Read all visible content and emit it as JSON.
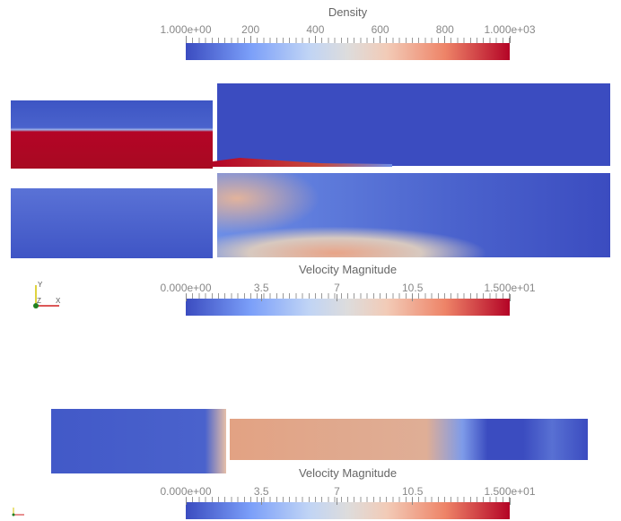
{
  "colorbars": [
    {
      "title": "Density",
      "tick_labels": [
        "1.000e+00",
        "200",
        "400",
        "600",
        "800",
        "1.000e+03"
      ]
    },
    {
      "title": "Velocity Magnitude",
      "tick_labels": [
        "0.000e+00",
        "3.5",
        "7",
        "10.5",
        "1.500e+01"
      ]
    },
    {
      "title": "Velocity Magnitude",
      "tick_labels": [
        "0.000e+00",
        "3.5",
        "7",
        "10.5",
        "1.500e+01"
      ]
    }
  ],
  "axes": {
    "y": "Y",
    "z": "Z",
    "x": "X"
  }
}
